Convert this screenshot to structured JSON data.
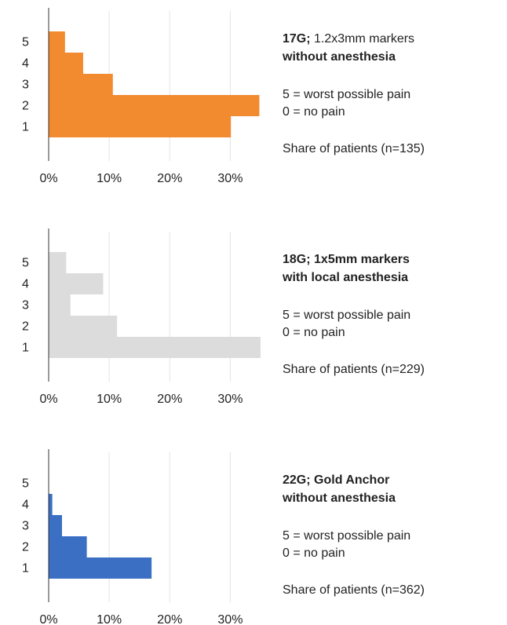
{
  "chart_data": [
    {
      "type": "bar",
      "orientation": "horizontal",
      "title_lead": "17G;",
      "title": "1.2x3mm markers",
      "title_bold": false,
      "subtitle": "without anesthesia",
      "annotations": [
        "5 = worst possible pain",
        "0 = no pain",
        "Share of patients (n=135)"
      ],
      "categories": [
        "1",
        "2",
        "3",
        "4",
        "5"
      ],
      "values": [
        30.1,
        34.8,
        10.6,
        5.7,
        2.7
      ],
      "color": "#f28a30",
      "xlim": [
        0,
        35
      ],
      "xticks": [
        {
          "value": 0,
          "label": "0%"
        },
        {
          "value": 10,
          "label": "10%"
        },
        {
          "value": 20,
          "label": "20%"
        },
        {
          "value": 30,
          "label": "30%"
        }
      ],
      "grid": true
    },
    {
      "type": "bar",
      "orientation": "horizontal",
      "title_lead": "18G;",
      "title": "1x5mm markers",
      "title_bold": true,
      "subtitle": "with local anesthesia",
      "annotations": [
        "5 = worst possible pain",
        "0 = no pain",
        "Share of patients (n=229)"
      ],
      "categories": [
        "1",
        "2",
        "3",
        "4",
        "5"
      ],
      "values": [
        35,
        11.3,
        3.6,
        9,
        2.9
      ],
      "color": "#dcdcdc",
      "xlim": [
        0,
        35
      ],
      "xticks": [
        {
          "value": 0,
          "label": "0%"
        },
        {
          "value": 10,
          "label": "10%"
        },
        {
          "value": 20,
          "label": "20%"
        },
        {
          "value": 30,
          "label": "30%"
        }
      ],
      "grid": true
    },
    {
      "type": "bar",
      "orientation": "horizontal",
      "title_lead": "22G;",
      "title": "Gold Anchor",
      "title_bold": true,
      "subtitle": "without anesthesia",
      "annotations": [
        "5 = worst possible pain",
        "0 = no pain",
        "Share of patients (n=362)"
      ],
      "categories": [
        "1",
        "2",
        "3",
        "4",
        "5"
      ],
      "values": [
        17,
        6.3,
        2.2,
        0.6,
        0
      ],
      "color": "#3a6fc4",
      "xlim": [
        0,
        35
      ],
      "xticks": [
        {
          "value": 0,
          "label": "0%"
        },
        {
          "value": 10,
          "label": "10%"
        },
        {
          "value": 20,
          "label": "20%"
        },
        {
          "value": 30,
          "label": "30%"
        }
      ],
      "grid": true
    }
  ]
}
